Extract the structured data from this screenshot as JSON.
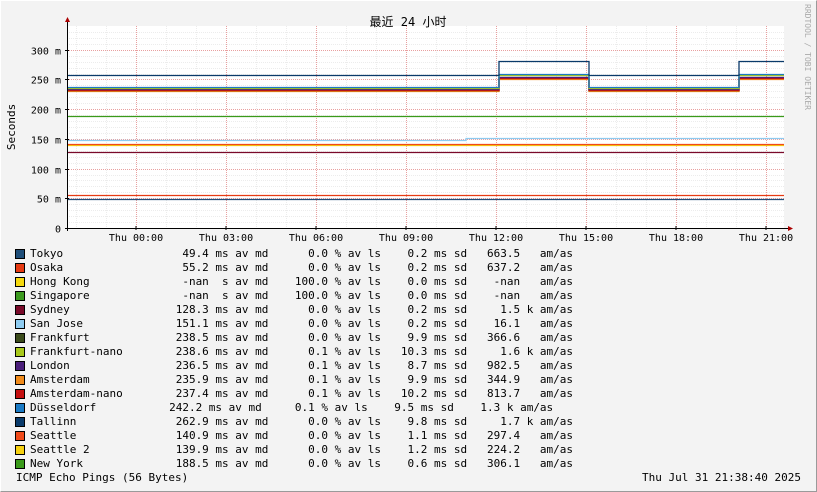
{
  "side_label": "RRDTOOL / TOBI OETIKER",
  "footer": {
    "left": "ICMP Echo Pings (56 Bytes)",
    "right": "Thu Jul 31 21:38:40 2025"
  },
  "legend": [
    {
      "text": "Tokyo                  49.4 ms av md      0.0 % av ls    0.2 ms sd   663.5   am/as",
      "color": "#1f4e79"
    },
    {
      "text": "Osaka                  55.2 ms av md      0.0 % av ls    0.2 ms sd   637.2   am/as",
      "color": "#e63a12"
    },
    {
      "text": "Hong Kong              -nan  s av md    100.0 % av ls    0.0 ms sd    -nan   am/as",
      "color": "#f5d90f"
    },
    {
      "text": "Singapore              -nan  s av md    100.0 % av ls    0.0 ms sd    -nan   am/as",
      "color": "#3c9a1f"
    },
    {
      "text": "Sydney                128.3 ms av md      0.0 % av ls    0.2 ms sd     1.5 k am/as",
      "color": "#7a0a2a"
    },
    {
      "text": "San Jose              151.1 ms av md      0.0 % av ls    0.2 ms sd    16.1   am/as",
      "color": "#8ecbf0"
    },
    {
      "text": "Frankfurt             238.5 ms av md      0.0 % av ls    9.9 ms sd   366.6   am/as",
      "color": "#3a4a1a"
    },
    {
      "text": "Frankfurt-nano        238.6 ms av md      0.1 % av ls   10.3 ms sd     1.6 k am/as",
      "color": "#a8c81a"
    },
    {
      "text": "London                236.5 ms av md      0.1 % av ls    8.7 ms sd   982.5   am/as",
      "color": "#4a1e7a"
    },
    {
      "text": "Amsterdam             235.9 ms av md      0.1 % av ls    9.9 ms sd   344.9   am/as",
      "color": "#f08a1a"
    },
    {
      "text": "Amsterdam-nano        237.4 ms av md      0.1 % av ls   10.2 ms sd   813.7   am/as",
      "color": "#c41010"
    },
    {
      "text": "Düsseldorf           242.2 ms av md     0.1 % av ls    9.5 ms sd    1.3 k am/as",
      "color": "#1a7ac4"
    },
    {
      "text": "Tallinn               262.9 ms av md      0.0 % av ls    9.8 ms sd     1.7 k am/as",
      "color": "#0a3a6a"
    },
    {
      "text": "Seattle               140.9 ms av md      0.0 % av ls    1.1 ms sd   297.4   am/as",
      "color": "#f04a1a"
    },
    {
      "text": "Seattle 2             139.9 ms av md      0.0 % av ls    1.2 ms sd   224.2   am/as",
      "color": "#f5d010"
    },
    {
      "text": "New York              188.5 ms av md      0.0 % av ls    0.6 ms sd   306.1   am/as",
      "color": "#3a9a1a"
    }
  ],
  "chart_data": {
    "type": "line",
    "title": "最近 24 小时",
    "ylabel": "Seconds",
    "ylim": [
      0,
      0.34
    ],
    "yticks": [
      {
        "v": 0,
        "label": "0"
      },
      {
        "v": 0.05,
        "label": "50 m"
      },
      {
        "v": 0.1,
        "label": "100 m"
      },
      {
        "v": 0.15,
        "label": "150 m"
      },
      {
        "v": 0.2,
        "label": "200 m"
      },
      {
        "v": 0.25,
        "label": "250 m"
      },
      {
        "v": 0.3,
        "label": "300 m"
      }
    ],
    "xlim": [
      -2.3,
      21.6
    ],
    "xticks": [
      {
        "h": 0,
        "label": "Thu 00:00"
      },
      {
        "h": 3,
        "label": "Thu 03:00"
      },
      {
        "h": 6,
        "label": "Thu 06:00"
      },
      {
        "h": 9,
        "label": "Thu 09:00"
      },
      {
        "h": 12,
        "label": "Thu 12:00"
      },
      {
        "h": 15,
        "label": "Thu 15:00"
      },
      {
        "h": 18,
        "label": "Thu 18:00"
      },
      {
        "h": 21,
        "label": "Thu 21:00"
      }
    ],
    "grid": true,
    "series": [
      {
        "name": "Tokyo",
        "color": "#1f4e79",
        "points": [
          [
            -2.3,
            0.049
          ],
          [
            21.6,
            0.049
          ]
        ]
      },
      {
        "name": "Osaka",
        "color": "#e63a12",
        "points": [
          [
            -2.3,
            0.055
          ],
          [
            21.6,
            0.055
          ]
        ]
      },
      {
        "name": "Sydney",
        "color": "#7a0a2a",
        "points": [
          [
            -2.3,
            0.128
          ],
          [
            21.6,
            0.128
          ]
        ]
      },
      {
        "name": "Seattle 2",
        "color": "#f5d010",
        "points": [
          [
            -2.3,
            0.139
          ],
          [
            21.6,
            0.139
          ]
        ]
      },
      {
        "name": "Seattle",
        "color": "#f04a1a",
        "points": [
          [
            -2.3,
            0.141
          ],
          [
            21.6,
            0.141
          ]
        ]
      },
      {
        "name": "San Jose",
        "color": "#8ecbf0",
        "points": [
          [
            -2.3,
            0.148
          ],
          [
            11,
            0.148
          ],
          [
            11,
            0.151
          ],
          [
            21.6,
            0.151
          ]
        ]
      },
      {
        "name": "New York",
        "color": "#3a9a1a",
        "points": [
          [
            -2.3,
            0.188
          ],
          [
            21.6,
            0.188
          ]
        ]
      },
      {
        "name": "Amsterdam",
        "color": "#f08a1a",
        "points": [
          [
            -2.3,
            0.231
          ],
          [
            12.1,
            0.231
          ],
          [
            12.1,
            0.251
          ],
          [
            15.1,
            0.251
          ],
          [
            15.1,
            0.231
          ],
          [
            20.1,
            0.231
          ],
          [
            20.1,
            0.251
          ],
          [
            21.6,
            0.251
          ]
        ]
      },
      {
        "name": "Frankfurt",
        "color": "#3a4a1a",
        "points": [
          [
            -2.3,
            0.233
          ],
          [
            12.1,
            0.233
          ],
          [
            12.1,
            0.254
          ],
          [
            15.1,
            0.254
          ],
          [
            15.1,
            0.233
          ],
          [
            20.1,
            0.233
          ],
          [
            20.1,
            0.254
          ],
          [
            21.6,
            0.254
          ]
        ]
      },
      {
        "name": "Amsterdam-nano",
        "color": "#c41010",
        "points": [
          [
            -2.3,
            0.232
          ],
          [
            12.1,
            0.232
          ],
          [
            12.1,
            0.252
          ],
          [
            15.1,
            0.252
          ],
          [
            15.1,
            0.232
          ],
          [
            20.1,
            0.232
          ],
          [
            20.1,
            0.252
          ],
          [
            21.6,
            0.252
          ]
        ]
      },
      {
        "name": "London",
        "color": "#4a1e7a",
        "points": [
          [
            -2.3,
            0.234
          ],
          [
            12.1,
            0.234
          ],
          [
            12.1,
            0.255
          ],
          [
            15.1,
            0.255
          ],
          [
            15.1,
            0.234
          ],
          [
            20.1,
            0.234
          ],
          [
            20.1,
            0.255
          ],
          [
            21.6,
            0.255
          ]
        ]
      },
      {
        "name": "Frankfurt-nano",
        "color": "#a8c81a",
        "points": [
          [
            -2.3,
            0.236
          ],
          [
            12.1,
            0.236
          ],
          [
            12.1,
            0.257
          ],
          [
            15.1,
            0.257
          ],
          [
            15.1,
            0.236
          ],
          [
            20.1,
            0.236
          ],
          [
            20.1,
            0.257
          ],
          [
            21.6,
            0.257
          ]
        ]
      },
      {
        "name": "Düsseldorf",
        "color": "#1a7ac4",
        "points": [
          [
            -2.3,
            0.238
          ],
          [
            12.1,
            0.238
          ],
          [
            12.1,
            0.259
          ],
          [
            15.1,
            0.259
          ],
          [
            15.1,
            0.238
          ],
          [
            20.1,
            0.238
          ],
          [
            20.1,
            0.259
          ],
          [
            21.6,
            0.259
          ]
        ]
      },
      {
        "name": "Tallinn",
        "color": "#0a3a6a",
        "points": [
          [
            -2.3,
            0.258
          ],
          [
            12.1,
            0.258
          ],
          [
            12.1,
            0.281
          ],
          [
            15.1,
            0.281
          ],
          [
            15.1,
            0.258
          ],
          [
            20.1,
            0.258
          ],
          [
            20.1,
            0.281
          ],
          [
            21.6,
            0.281
          ]
        ]
      }
    ]
  }
}
